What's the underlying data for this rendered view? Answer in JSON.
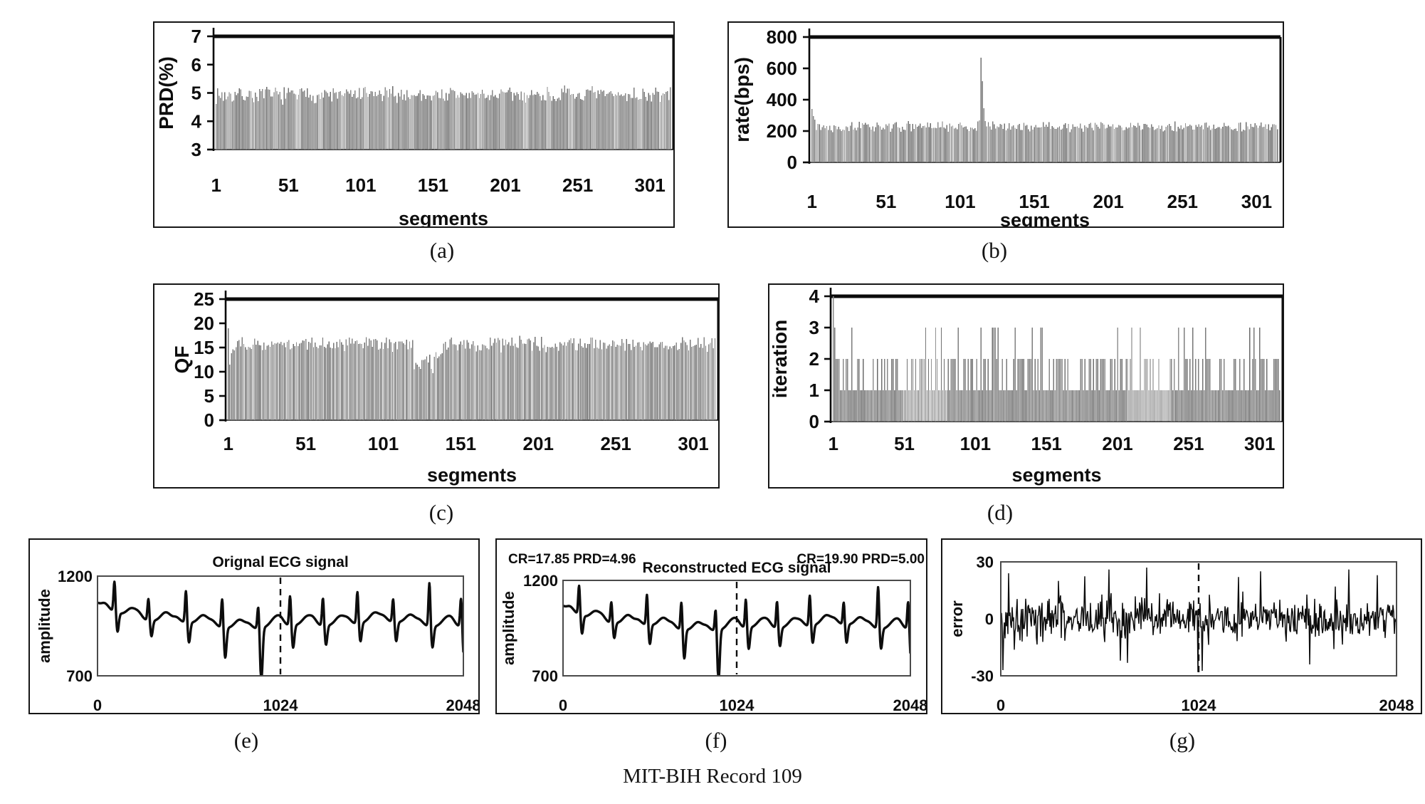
{
  "figure": {
    "caption": "MIT-BIH Record 109"
  },
  "panels": {
    "a": {
      "label": "(a)"
    },
    "b": {
      "label": "(b)"
    },
    "c": {
      "label": "(c)"
    },
    "d": {
      "label": "(d)"
    },
    "e": {
      "label": "(e)"
    },
    "f": {
      "label": "(f)"
    },
    "g": {
      "label": "(g)"
    }
  },
  "colors": {
    "bar": "#7a7a7a",
    "axis": "#0a0a0a",
    "frame": "#161616",
    "inner_box": "#4a4a4a",
    "signal": "#0d0d0d",
    "text": "#0d0d0d"
  },
  "chart_data": [
    {
      "id": "a",
      "type": "bar",
      "ylabel": "PRD(%)",
      "xlabel": "segments",
      "ylim": [
        3,
        7
      ],
      "yticks": [
        7,
        6,
        5,
        4,
        3
      ],
      "xticks": [
        1,
        51,
        101,
        151,
        201,
        251,
        301
      ],
      "n": 315,
      "gen": {
        "seed": 7,
        "mean": 4.93,
        "noise": 0.22,
        "min": 4.55,
        "max": 5.3
      },
      "events": [],
      "regions": []
    },
    {
      "id": "b",
      "type": "bar",
      "ylabel": "rate(bps)",
      "xlabel": "segments",
      "ylim": [
        0,
        800
      ],
      "yticks": [
        800,
        600,
        400,
        200,
        0
      ],
      "xticks": [
        1,
        51,
        101,
        151,
        201,
        251,
        301
      ],
      "n": 315,
      "gen": {
        "seed": 13,
        "mean": 228,
        "noise": 24,
        "min": 186,
        "max": 274
      },
      "events": [
        [
          0,
          340
        ],
        [
          1,
          296
        ],
        [
          2,
          272
        ],
        [
          112,
          262
        ],
        [
          113,
          268
        ],
        [
          114,
          668
        ],
        [
          115,
          518
        ],
        [
          116,
          346
        ],
        [
          117,
          264
        ]
      ],
      "regions": []
    },
    {
      "id": "c",
      "type": "bar",
      "ylabel": "QF",
      "xlabel": "segments",
      "ylim": [
        0,
        25
      ],
      "yticks": [
        25,
        20,
        15,
        10,
        5,
        0
      ],
      "xticks": [
        1,
        51,
        101,
        151,
        201,
        251,
        301
      ],
      "n": 315,
      "gen": {
        "seed": 29,
        "mean": 15.7,
        "noise": 1.15,
        "min": 13.6,
        "max": 19.4
      },
      "events": [
        [
          0,
          19
        ],
        [
          1,
          11.5
        ],
        [
          2,
          13.8
        ],
        [
          3,
          14.6
        ]
      ],
      "regions": [
        {
          "from": 120,
          "to": 138,
          "mean": 12.4,
          "noise": 1.7,
          "min": 9,
          "max": 14.8
        }
      ]
    },
    {
      "id": "d",
      "type": "bar",
      "ylabel": "iteration",
      "xlabel": "segments",
      "ylim": [
        0,
        4
      ],
      "yticks": [
        4,
        3,
        2,
        1,
        0
      ],
      "xticks": [
        1,
        51,
        101,
        151,
        201,
        251,
        301
      ],
      "n": 315,
      "gen": {
        "seed": 41,
        "discrete": [
          1,
          2,
          3
        ],
        "weights": [
          0.54,
          0.38,
          0.08
        ]
      },
      "events": [
        [
          0,
          4
        ],
        [
          1,
          3
        ],
        [
          2,
          2
        ],
        [
          3,
          2
        ],
        [
          4,
          2
        ],
        [
          5,
          1
        ],
        [
          6,
          1
        ],
        [
          7,
          2
        ],
        [
          8,
          1
        ],
        [
          112,
          3
        ],
        [
          113,
          3
        ],
        [
          114,
          3
        ],
        [
          115,
          2
        ],
        [
          116,
          3
        ]
      ],
      "regions": []
    },
    {
      "id": "e",
      "type": "ecg",
      "title": "Orignal ECG signal",
      "ylabel": "amplitude",
      "ylim": [
        700,
        1200
      ],
      "yticks": [
        1200,
        700
      ],
      "xlim": [
        0,
        2048
      ],
      "xticks": [
        0,
        1024,
        2048
      ],
      "dashed_x": 1024,
      "baseline": 952,
      "start_level": 100,
      "beats": [
        [
          95,
          155,
          95
        ],
        [
          285,
          112,
          78
        ],
        [
          495,
          162,
          100
        ],
        [
          698,
          148,
          150
        ],
        [
          900,
          118,
          268
        ],
        [
          1078,
          152,
          112
        ],
        [
          1262,
          142,
          96
        ],
        [
          1455,
          162,
          92
        ],
        [
          1655,
          118,
          96
        ],
        [
          1858,
          222,
          106
        ],
        [
          2035,
          148,
          165
        ]
      ]
    },
    {
      "id": "f",
      "type": "ecg",
      "title": "Reconstructed ECG signal",
      "annotation_left": "CR=17.85 PRD=4.96",
      "annotation_right": "CR=19.90 PRD=5.00",
      "ylabel": "amplitude",
      "ylim": [
        700,
        1200
      ],
      "yticks": [
        1200,
        700
      ],
      "xlim": [
        0,
        2048
      ],
      "xticks": [
        0,
        1024,
        2048
      ],
      "dashed_x": 1024,
      "baseline": 952,
      "start_level": 100,
      "beats": [
        [
          95,
          155,
          95
        ],
        [
          285,
          112,
          78
        ],
        [
          495,
          162,
          100
        ],
        [
          698,
          148,
          150
        ],
        [
          900,
          118,
          268
        ],
        [
          1078,
          152,
          112
        ],
        [
          1262,
          142,
          96
        ],
        [
          1455,
          162,
          92
        ],
        [
          1655,
          118,
          96
        ],
        [
          1858,
          222,
          106
        ],
        [
          2035,
          148,
          165
        ]
      ]
    },
    {
      "id": "g",
      "type": "noise",
      "ylabel": "error",
      "ylim": [
        -30,
        30
      ],
      "yticks": [
        30,
        0,
        -30
      ],
      "xlim": [
        0,
        2048
      ],
      "xticks": [
        0,
        1024,
        2048
      ],
      "dashed_x": 1024,
      "gen": {
        "seed": 77,
        "sigma": 8.5,
        "clamp": 29
      },
      "events": [
        [
          12,
          -27
        ],
        [
          40,
          24
        ],
        [
          300,
          20
        ],
        [
          560,
          26
        ],
        [
          620,
          -22
        ],
        [
          755,
          27
        ],
        [
          1020,
          -28
        ],
        [
          1230,
          22
        ],
        [
          1345,
          25
        ],
        [
          1600,
          -24
        ],
        [
          1800,
          26
        ],
        [
          1950,
          23
        ]
      ]
    }
  ]
}
